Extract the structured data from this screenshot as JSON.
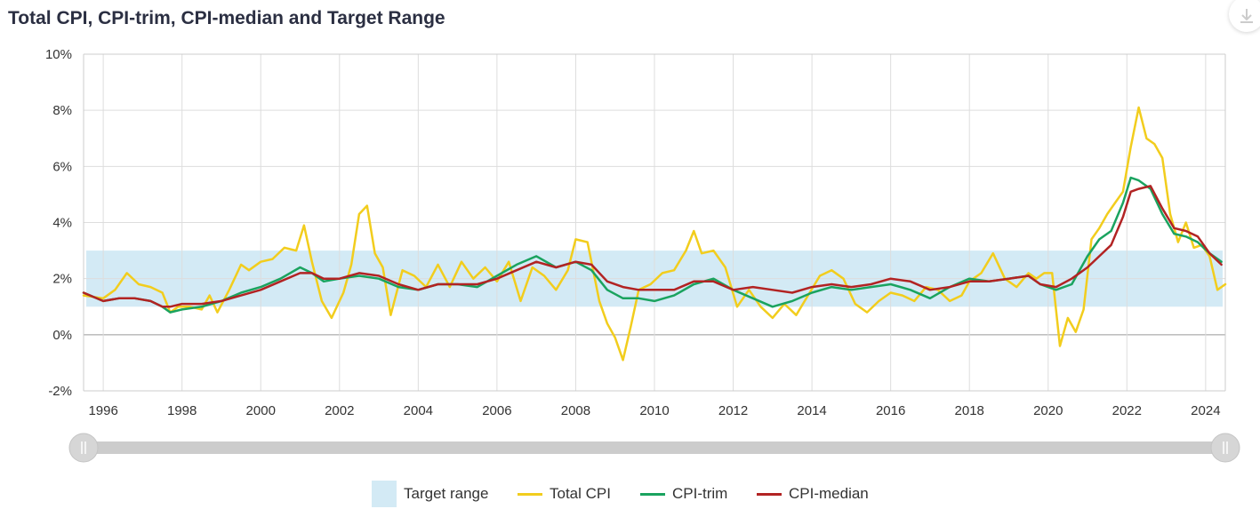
{
  "title": "Total CPI, CPI-trim, CPI-median and Target Range",
  "download_icon": "download-icon",
  "legend": {
    "target": "Target range",
    "total": "Total CPI",
    "trim": "CPI-trim",
    "median": "CPI-median"
  },
  "colors": {
    "target": "#d3eaf5",
    "total": "#f2cd1d",
    "trim": "#1aa35f",
    "median": "#b22323",
    "grid": "#dddddd",
    "zero": "#999999",
    "axis_text": "#333333"
  },
  "chart_data": {
    "type": "line",
    "title": "Total CPI, CPI-trim, CPI-median and Target Range",
    "x_unit": "year",
    "xlim": [
      1995.5,
      2024.5
    ],
    "ylim": [
      -2,
      10
    ],
    "y_ticks": [
      "-2%",
      "0%",
      "2%",
      "4%",
      "6%",
      "8%",
      "10%"
    ],
    "y_tick_values": [
      -2,
      0,
      2,
      4,
      6,
      8,
      10
    ],
    "x_ticks": [
      "1996",
      "1998",
      "2000",
      "2002",
      "2004",
      "2006",
      "2008",
      "2010",
      "2012",
      "2014",
      "2016",
      "2018",
      "2020",
      "2022",
      "2024"
    ],
    "x_tick_values": [
      1996,
      1998,
      2000,
      2002,
      2004,
      2006,
      2008,
      2010,
      2012,
      2014,
      2016,
      2018,
      2020,
      2022,
      2024
    ],
    "grid": true,
    "legend_position": "bottom",
    "target_range": {
      "name": "Target range",
      "low": 1,
      "high": 3
    },
    "series": [
      {
        "name": "Total CPI",
        "x": [
          1995.5,
          1996.0,
          1996.3,
          1996.6,
          1996.9,
          1997.2,
          1997.5,
          1997.7,
          1997.9,
          1998.2,
          1998.5,
          1998.7,
          1998.9,
          1999.2,
          1999.5,
          1999.7,
          2000.0,
          2000.3,
          2000.6,
          2000.9,
          2001.1,
          2001.3,
          2001.55,
          2001.8,
          2002.1,
          2002.3,
          2002.5,
          2002.7,
          2002.9,
          2003.1,
          2003.3,
          2003.6,
          2003.9,
          2004.2,
          2004.5,
          2004.8,
          2005.1,
          2005.4,
          2005.7,
          2006.0,
          2006.3,
          2006.6,
          2006.9,
          2007.2,
          2007.5,
          2007.8,
          2008.0,
          2008.3,
          2008.6,
          2008.8,
          2009.0,
          2009.2,
          2009.4,
          2009.6,
          2009.9,
          2010.2,
          2010.5,
          2010.8,
          2011.0,
          2011.2,
          2011.5,
          2011.8,
          2012.1,
          2012.4,
          2012.7,
          2013.0,
          2013.3,
          2013.6,
          2013.9,
          2014.2,
          2014.5,
          2014.8,
          2015.1,
          2015.4,
          2015.7,
          2016.0,
          2016.3,
          2016.6,
          2016.9,
          2017.2,
          2017.5,
          2017.8,
          2018.0,
          2018.3,
          2018.6,
          2018.9,
          2019.2,
          2019.5,
          2019.7,
          2019.9,
          2020.1,
          2020.3,
          2020.5,
          2020.7,
          2020.9,
          2021.1,
          2021.3,
          2021.5,
          2021.7,
          2021.9,
          2022.1,
          2022.3,
          2022.5,
          2022.7,
          2022.9,
          2023.1,
          2023.3,
          2023.5,
          2023.7,
          2023.9,
          2024.1,
          2024.3,
          2024.5
        ],
        "y": [
          1.4,
          1.3,
          1.6,
          2.2,
          1.8,
          1.7,
          1.5,
          0.8,
          1.0,
          1.0,
          0.9,
          1.4,
          0.8,
          1.6,
          2.5,
          2.3,
          2.6,
          2.7,
          3.1,
          3.0,
          3.9,
          2.6,
          1.2,
          0.6,
          1.5,
          2.5,
          4.3,
          4.6,
          2.9,
          2.4,
          0.7,
          2.3,
          2.1,
          1.7,
          2.5,
          1.7,
          2.6,
          2.0,
          2.4,
          1.9,
          2.6,
          1.2,
          2.4,
          2.1,
          1.6,
          2.3,
          3.4,
          3.3,
          1.2,
          0.4,
          -0.1,
          -0.9,
          0.3,
          1.6,
          1.8,
          2.2,
          2.3,
          3.0,
          3.7,
          2.9,
          3.0,
          2.4,
          1.0,
          1.6,
          1.0,
          0.6,
          1.1,
          0.7,
          1.4,
          2.1,
          2.3,
          2.0,
          1.1,
          0.8,
          1.2,
          1.5,
          1.4,
          1.2,
          1.7,
          1.6,
          1.2,
          1.4,
          1.9,
          2.2,
          2.9,
          2.0,
          1.7,
          2.2,
          2.0,
          2.2,
          2.2,
          -0.4,
          0.6,
          0.1,
          0.9,
          3.4,
          3.8,
          4.3,
          4.7,
          5.1,
          6.7,
          8.1,
          7.0,
          6.8,
          6.3,
          4.3,
          3.3,
          4.0,
          3.1,
          3.2,
          2.8,
          1.6,
          1.8
        ]
      },
      {
        "name": "CPI-trim",
        "x": [
          1995.5,
          1996.0,
          1996.4,
          1996.8,
          1997.2,
          1997.5,
          1997.7,
          1998.0,
          1998.5,
          1999.0,
          1999.5,
          2000.0,
          2000.5,
          2001.0,
          2001.3,
          2001.6,
          2002.0,
          2002.5,
          2003.0,
          2003.5,
          2004.0,
          2004.5,
          2005.0,
          2005.5,
          2006.0,
          2006.5,
          2007.0,
          2007.5,
          2008.0,
          2008.4,
          2008.8,
          2009.2,
          2009.6,
          2010.0,
          2010.5,
          2011.0,
          2011.5,
          2012.0,
          2012.5,
          2013.0,
          2013.5,
          2014.0,
          2014.5,
          2015.0,
          2015.5,
          2016.0,
          2016.5,
          2017.0,
          2017.5,
          2018.0,
          2018.5,
          2019.0,
          2019.5,
          2019.8,
          2020.2,
          2020.6,
          2021.0,
          2021.3,
          2021.6,
          2021.9,
          2022.1,
          2022.3,
          2022.6,
          2022.9,
          2023.2,
          2023.5,
          2023.8,
          2024.1,
          2024.4
        ],
        "y": [
          1.5,
          1.2,
          1.3,
          1.3,
          1.2,
          1.0,
          0.8,
          0.9,
          1.0,
          1.2,
          1.5,
          1.7,
          2.0,
          2.4,
          2.2,
          1.9,
          2.0,
          2.1,
          2.0,
          1.7,
          1.6,
          1.8,
          1.8,
          1.7,
          2.1,
          2.5,
          2.8,
          2.4,
          2.6,
          2.3,
          1.6,
          1.3,
          1.3,
          1.2,
          1.4,
          1.8,
          2.0,
          1.6,
          1.3,
          1.0,
          1.2,
          1.5,
          1.7,
          1.6,
          1.7,
          1.8,
          1.6,
          1.3,
          1.7,
          2.0,
          1.9,
          2.0,
          2.1,
          1.8,
          1.6,
          1.8,
          2.8,
          3.4,
          3.7,
          4.7,
          5.6,
          5.5,
          5.2,
          4.3,
          3.6,
          3.5,
          3.3,
          2.9,
          2.6
        ]
      },
      {
        "name": "CPI-median",
        "x": [
          1995.5,
          1996.0,
          1996.4,
          1996.8,
          1997.2,
          1997.5,
          1997.7,
          1998.0,
          1998.5,
          1999.0,
          1999.5,
          2000.0,
          2000.5,
          2001.0,
          2001.3,
          2001.6,
          2002.0,
          2002.5,
          2003.0,
          2003.5,
          2004.0,
          2004.5,
          2005.0,
          2005.5,
          2006.0,
          2006.5,
          2007.0,
          2007.5,
          2008.0,
          2008.4,
          2008.8,
          2009.2,
          2009.6,
          2010.0,
          2010.5,
          2011.0,
          2011.5,
          2012.0,
          2012.5,
          2013.0,
          2013.5,
          2014.0,
          2014.5,
          2015.0,
          2015.5,
          2016.0,
          2016.5,
          2017.0,
          2017.5,
          2018.0,
          2018.5,
          2019.0,
          2019.5,
          2019.8,
          2020.2,
          2020.6,
          2021.0,
          2021.3,
          2021.6,
          2021.9,
          2022.1,
          2022.3,
          2022.6,
          2022.9,
          2023.2,
          2023.5,
          2023.8,
          2024.1,
          2024.4
        ],
        "y": [
          1.5,
          1.2,
          1.3,
          1.3,
          1.2,
          1.0,
          1.0,
          1.1,
          1.1,
          1.2,
          1.4,
          1.6,
          1.9,
          2.2,
          2.2,
          2.0,
          2.0,
          2.2,
          2.1,
          1.8,
          1.6,
          1.8,
          1.8,
          1.8,
          2.0,
          2.3,
          2.6,
          2.4,
          2.6,
          2.5,
          1.9,
          1.7,
          1.6,
          1.6,
          1.6,
          1.9,
          1.9,
          1.6,
          1.7,
          1.6,
          1.5,
          1.7,
          1.8,
          1.7,
          1.8,
          2.0,
          1.9,
          1.6,
          1.7,
          1.9,
          1.9,
          2.0,
          2.1,
          1.8,
          1.7,
          2.0,
          2.4,
          2.8,
          3.2,
          4.2,
          5.1,
          5.2,
          5.3,
          4.5,
          3.8,
          3.7,
          3.5,
          2.9,
          2.5
        ]
      }
    ]
  },
  "slider": {
    "range": [
      1995.5,
      2024.5
    ],
    "selected": [
      1995.5,
      2024.5
    ]
  }
}
